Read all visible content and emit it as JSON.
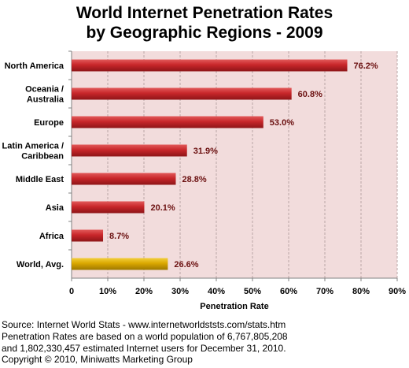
{
  "chart_data": {
    "type": "bar",
    "orientation": "horizontal",
    "title": "World Internet Penetration Rates",
    "subtitle": "by Geographic Regions - 2009",
    "categories": [
      "North America",
      "Oceania  /\nAustralia",
      "Europe",
      "Latin America /\nCaribbean",
      "Middle East",
      "Asia",
      "Africa",
      "World, Avg."
    ],
    "values": [
      76.2,
      60.8,
      53.0,
      31.9,
      28.8,
      20.1,
      8.7,
      26.6
    ],
    "value_labels": [
      "76.2%",
      "60.8%",
      "53.0%",
      "31.9%",
      "28.8%",
      "20.1%",
      "8.7%",
      "26.6%"
    ],
    "xlabel": "Penetration Rate",
    "ylabel": "",
    "xlim": [
      0,
      90
    ],
    "xticks": [
      "0",
      "10%",
      "20%",
      "30%",
      "40%",
      "50%",
      "60%",
      "70%",
      "80%",
      "90%"
    ],
    "grid": true,
    "legend": "none",
    "colors": {
      "bar": "#c0282c",
      "highlight_bar": "#d8a800",
      "plot_background": "#f2dcdc",
      "value_label": "#6b1010"
    },
    "highlight_category": "World, Avg."
  },
  "footer": {
    "line1": "Source: Internet World Stats - www.internetworldststs.com/stats.htm",
    "line2": "Penetration Rates are based on a world population of 6,767,805,208",
    "line3": "and 1,802,330,457 estimated Internet users for December 31, 2010.",
    "line4": "Copyright © 2010, Miniwatts Marketing Group"
  }
}
